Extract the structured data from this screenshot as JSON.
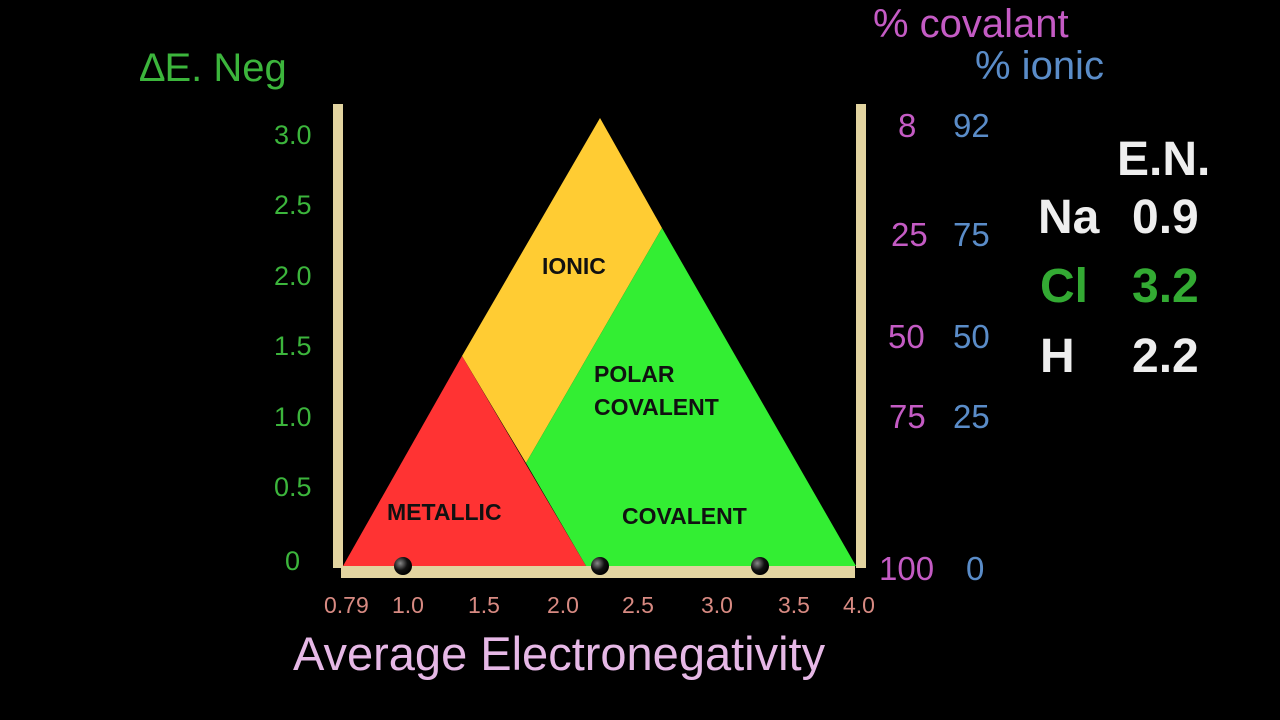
{
  "axis": {
    "y_label": "∆E. Neg",
    "y_ticks": [
      "3.0",
      "2.5",
      "2.0",
      "1.5",
      "1.0",
      "0.5",
      "0"
    ],
    "x_label": "Average Electronegativity",
    "x_ticks": [
      "0.79",
      "1.0",
      "1.5",
      "2.0",
      "2.5",
      "3.0",
      "3.5",
      "4.0"
    ]
  },
  "right_axis": {
    "covalent_header": "% covalant",
    "ionic_header": "% ionic",
    "rows": [
      {
        "covalent": "8",
        "ionic": "92"
      },
      {
        "covalent": "25",
        "ionic": "75"
      },
      {
        "covalent": "50",
        "ionic": "50"
      },
      {
        "covalent": "75",
        "ionic": "25"
      },
      {
        "covalent": "100",
        "ionic": "0"
      }
    ]
  },
  "regions": {
    "ionic": "IONIC",
    "polar_line1": "POLAR",
    "polar_line2": "COVALENT",
    "metallic": "METALLIC",
    "covalent": "COVALENT"
  },
  "colors": {
    "ionic": "#ffcc33",
    "polar": "#33ee33",
    "metallic": "#ff3333",
    "frame": "#e2d4a0",
    "green_text": "#3cb53c",
    "pink": "#c45bc4",
    "blue": "#5a8cc8"
  },
  "en_table": {
    "header": "E.N.",
    "rows": [
      {
        "symbol": "Na",
        "value": "0.9",
        "color": "#eeeeee"
      },
      {
        "symbol": "Cl",
        "value": "3.2",
        "color": "#33aa33"
      },
      {
        "symbol": "H",
        "value": "2.2",
        "color": "#eeeeee"
      }
    ]
  }
}
